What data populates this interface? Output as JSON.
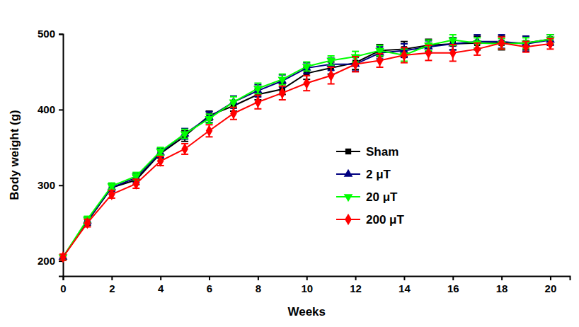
{
  "chart_data": {
    "type": "line",
    "x_label": "Weeks",
    "y_label": "Body weight (g)",
    "x": [
      0,
      1,
      2,
      3,
      4,
      5,
      6,
      7,
      8,
      9,
      10,
      11,
      12,
      13,
      14,
      15,
      16,
      17,
      18,
      19,
      20
    ],
    "xlim": [
      0,
      20.8
    ],
    "xticks": [
      0,
      2,
      4,
      6,
      8,
      10,
      12,
      14,
      16,
      18,
      20
    ],
    "ylim": [
      180,
      500
    ],
    "yticks": [
      200,
      300,
      400,
      500
    ],
    "grid": false,
    "legend": "lower right",
    "series": [
      {
        "name": "Sham",
        "color": "#000000",
        "marker": "square",
        "line_style": "solid",
        "values": [
          205,
          252,
          297,
          307,
          342,
          365,
          392,
          405,
          420,
          427,
          448,
          455,
          462,
          478,
          480,
          485,
          487,
          488,
          488,
          488,
          493
        ],
        "errors": [
          4,
          5,
          5,
          6,
          6,
          7,
          6,
          7,
          7,
          7,
          8,
          8,
          9,
          8,
          10,
          8,
          8,
          9,
          9,
          9,
          7
        ]
      },
      {
        "name": "2 μT",
        "color": "#000080",
        "marker": "triangle-up",
        "line_style": "solid",
        "values": [
          205,
          253,
          297,
          310,
          343,
          368,
          390,
          410,
          425,
          438,
          455,
          460,
          460,
          475,
          478,
          483,
          487,
          490,
          490,
          487,
          492
        ],
        "errors": [
          4,
          5,
          5,
          6,
          6,
          7,
          7,
          8,
          8,
          8,
          7,
          8,
          9,
          8,
          9,
          8,
          8,
          9,
          9,
          10,
          7
        ]
      },
      {
        "name": "20 μT",
        "color": "#00ff00",
        "marker": "triangle-down",
        "line_style": "solid",
        "values": [
          205,
          255,
          299,
          312,
          345,
          368,
          388,
          410,
          428,
          440,
          457,
          465,
          470,
          478,
          472,
          485,
          492,
          488,
          487,
          488,
          493
        ],
        "errors": [
          4,
          4,
          4,
          5,
          5,
          6,
          6,
          7,
          7,
          7,
          6,
          6,
          7,
          7,
          8,
          7,
          7,
          7,
          7,
          7,
          6
        ]
      },
      {
        "name": "200 μT",
        "color": "#ff0000",
        "marker": "diamond",
        "line_style": "solid",
        "values": [
          205,
          250,
          288,
          302,
          332,
          348,
          372,
          395,
          410,
          422,
          435,
          445,
          460,
          465,
          472,
          475,
          475,
          480,
          488,
          483,
          487
        ],
        "errors": [
          4,
          5,
          5,
          6,
          6,
          7,
          8,
          8,
          9,
          9,
          10,
          11,
          10,
          9,
          10,
          10,
          11,
          8,
          8,
          7,
          7
        ]
      }
    ]
  }
}
